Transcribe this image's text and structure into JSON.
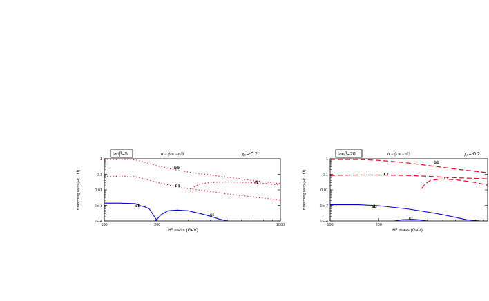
{
  "chart_data": [
    {
      "type": "line",
      "x_scale": "log",
      "y_scale": "log",
      "xlim": [
        100,
        1000
      ],
      "ylim": [
        0.0001,
        1
      ],
      "x_ticks": [
        "100",
        "200",
        "1000"
      ],
      "y_ticks": [
        "1",
        "0.1",
        "0.01",
        "1E-3",
        "1E-4"
      ],
      "ylabel": "Branching ratio (H⁰→f f̄)",
      "xlabel": "H⁰ mass (GeV)",
      "box_label": "tanβ=5",
      "alpha_label": "α − β = −π/3",
      "chi_label": "χ₀=-0.2",
      "series": [
        {
          "name": "bb",
          "color": "#e0001a",
          "dash": "dotted",
          "x": [
            100,
            130,
            150,
            170,
            200,
            250,
            300,
            400,
            500,
            700,
            1000
          ],
          "y": [
            0.9,
            0.9,
            0.85,
            0.6,
            0.35,
            0.2,
            0.14,
            0.09,
            0.065,
            0.04,
            0.025
          ]
        },
        {
          "name": "τ τ",
          "color": "#e0001a",
          "dash": "dotted",
          "x": [
            100,
            130,
            150,
            170,
            200,
            250,
            300,
            400,
            500,
            700,
            1000
          ],
          "y": [
            0.075,
            0.075,
            0.07,
            0.05,
            0.03,
            0.017,
            0.012,
            0.008,
            0.0055,
            0.0035,
            0.0022
          ]
        },
        {
          "name": "tt",
          "color": "#e0001a",
          "dash": "dotted",
          "x": [
            300,
            320,
            350,
            400,
            500,
            600,
            700,
            850,
            1000
          ],
          "y": [
            0.006,
            0.015,
            0.024,
            0.03,
            0.032,
            0.031,
            0.029,
            0.025,
            0.02
          ]
        },
        {
          "name": "sb",
          "color": "#0000c8",
          "dash": "solid",
          "x": [
            100,
            120,
            150,
            160,
            170,
            180,
            195,
            200
          ],
          "y": [
            0.0014,
            0.0014,
            0.0013,
            0.00095,
            0.0008,
            0.0006,
            0.00015,
            0.0001
          ]
        },
        {
          "name": "ct",
          "color": "#0000c8",
          "dash": "solid",
          "x": [
            195,
            210,
            230,
            260,
            300,
            350,
            400,
            450,
            500
          ],
          "y": [
            0.0001,
            0.00025,
            0.00045,
            0.0005,
            0.00045,
            0.0003,
            0.0002,
            0.00013,
            0.0001
          ]
        }
      ]
    },
    {
      "type": "line",
      "x_scale": "log",
      "y_scale": "log",
      "xlim": [
        100,
        1000
      ],
      "ylim": [
        0.0001,
        1
      ],
      "x_ticks": [
        "100",
        "200"
      ],
      "y_ticks": [
        "1",
        "0.1",
        "0.01",
        "1E-3",
        "1E-4"
      ],
      "ylabel": "Branching ratio (H⁰→f f̄)",
      "xlabel": "H⁰ mass (GeV)",
      "box_label": "tanβ=20",
      "alpha_label": "α − β = −π/3",
      "chi_label": "χ₀=-0.2",
      "series": [
        {
          "name": "bb",
          "color": "#e0001a",
          "dash": "dashed",
          "x": [
            100,
            150,
            200,
            300,
            400,
            600,
            1000
          ],
          "y": [
            0.9,
            0.9,
            0.8,
            0.55,
            0.38,
            0.22,
            0.12
          ]
        },
        {
          "name": "τ τ",
          "color": "#e0001a",
          "dash": "dashed",
          "x": [
            100,
            150,
            200,
            300,
            400,
            600,
            1000
          ],
          "y": [
            0.085,
            0.09,
            0.09,
            0.085,
            0.075,
            0.06,
            0.05
          ]
        },
        {
          "name": "t t",
          "color": "#e0001a",
          "dash": "dashed",
          "x": [
            370,
            390,
            420,
            480,
            600,
            800,
            1000
          ],
          "y": [
            0.012,
            0.025,
            0.04,
            0.05,
            0.045,
            0.03,
            0.018
          ]
        },
        {
          "name": "sb",
          "color": "#0000c8",
          "dash": "solid",
          "x": [
            100,
            150,
            200,
            300,
            400,
            500,
            600,
            700,
            850
          ],
          "y": [
            0.0011,
            0.0011,
            0.00095,
            0.0006,
            0.00038,
            0.00025,
            0.00017,
            0.00012,
            0.0001
          ]
        },
        {
          "name": "ct",
          "color": "#0000c8",
          "dash": "solid",
          "x": [
            250,
            280,
            320,
            350,
            380,
            400
          ],
          "y": [
            0.0001,
            0.00012,
            0.000125,
            0.00012,
            0.00011,
            0.0001
          ]
        }
      ]
    }
  ]
}
